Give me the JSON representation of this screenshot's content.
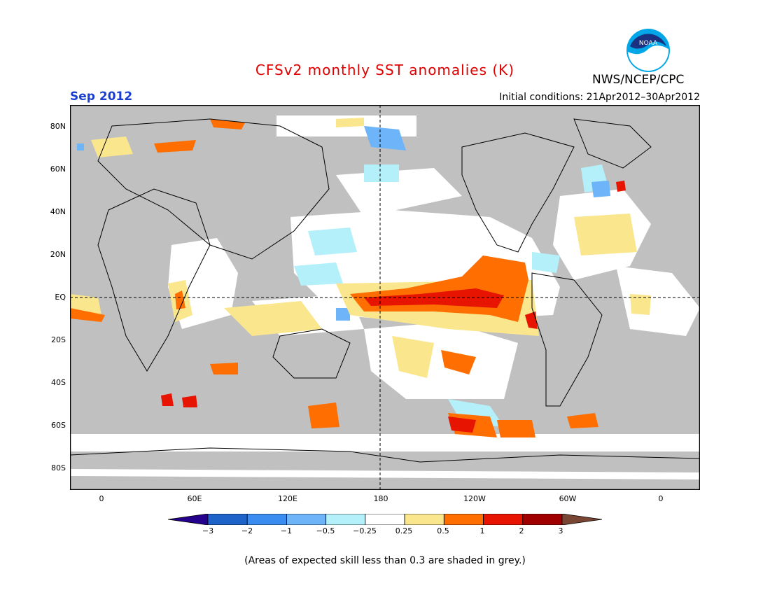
{
  "header": {
    "title": "CFSv2 monthly SST anomalies (K)",
    "month": "Sep 2012",
    "initial_conditions": "Initial conditions: 21Apr2012–30Apr2012",
    "organization": "NWS/NCEP/CPC",
    "logo_text": "NOAA"
  },
  "axes": {
    "lat_labels": [
      "80N",
      "60N",
      "40N",
      "20N",
      "EQ",
      "20S",
      "40S",
      "60S",
      "80S"
    ],
    "lon_labels": [
      "0",
      "60E",
      "120E",
      "180",
      "120W",
      "60W",
      "0"
    ]
  },
  "colorbar": {
    "labels": [
      "−3",
      "−2",
      "−1",
      "−0.5",
      "−0.25",
      "0.25",
      "0.5",
      "1",
      "2",
      "3"
    ],
    "colors": [
      "#24008c",
      "#1e64c8",
      "#3a8cf0",
      "#6eb4f8",
      "#b4f0fa",
      "#ffffff",
      "#fae68c",
      "#ff6e00",
      "#e61400",
      "#a00000",
      "#784632"
    ]
  },
  "footnote": "(Areas of expected skill less than 0.3 are shaded in grey.)",
  "map_colors": {
    "grey_skill": "#c0c0c0",
    "white": "#ffffff"
  }
}
